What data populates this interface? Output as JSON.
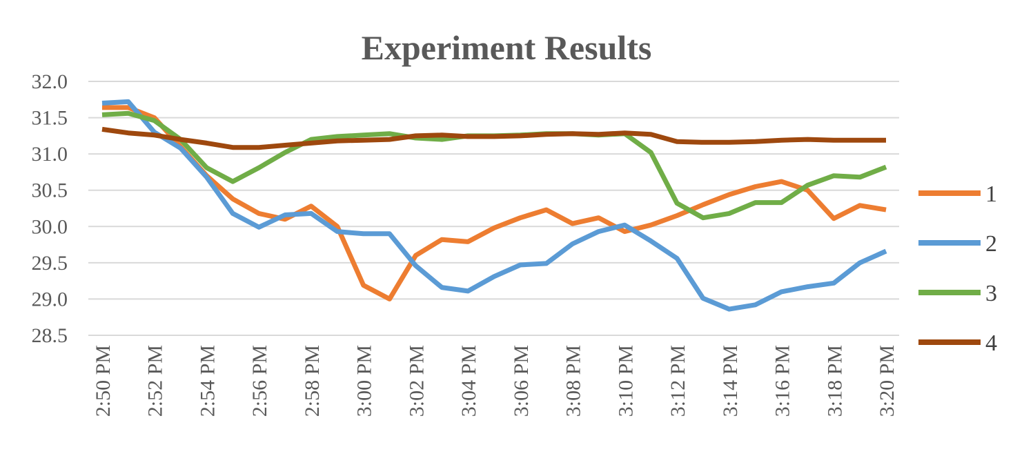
{
  "chart_data": {
    "type": "line",
    "title": "Experiment Results",
    "xlabel": "",
    "ylabel": "",
    "ylim": [
      28.5,
      32.0
    ],
    "yticks": [
      "32.0",
      "31.5",
      "31.0",
      "30.5",
      "30.0",
      "29.5",
      "29.0",
      "28.5"
    ],
    "ytick_values": [
      32.0,
      31.5,
      31.0,
      30.5,
      30.0,
      29.5,
      29.0,
      28.5
    ],
    "x": [
      "2:50 PM",
      "2:51 PM",
      "2:52 PM",
      "2:53 PM",
      "2:54 PM",
      "2:55 PM",
      "2:56 PM",
      "2:57 PM",
      "2:58 PM",
      "2:59 PM",
      "3:00 PM",
      "3:01 PM",
      "3:02 PM",
      "3:03 PM",
      "3:04 PM",
      "3:05 PM",
      "3:06 PM",
      "3:07 PM",
      "3:08 PM",
      "3:09 PM",
      "3:10 PM",
      "3:11 PM",
      "3:12 PM",
      "3:13 PM",
      "3:14 PM",
      "3:15 PM",
      "3:16 PM",
      "3:17 PM",
      "3:18 PM",
      "3:19 PM",
      "3:20 PM"
    ],
    "xtick_labels": [
      "2:50 PM",
      "2:52 PM",
      "2:54 PM",
      "2:56 PM",
      "2:58 PM",
      "3:00 PM",
      "3:02 PM",
      "3:04 PM",
      "3:06 PM",
      "3:08 PM",
      "3:10 PM",
      "3:12 PM",
      "3:14 PM",
      "3:16 PM",
      "3:18 PM",
      "3:20 PM"
    ],
    "grid": true,
    "legend_position": "right",
    "series": [
      {
        "name": "1",
        "color": "#ed7d31",
        "values": [
          31.64,
          31.64,
          31.5,
          31.1,
          30.7,
          30.38,
          30.18,
          30.1,
          30.28,
          30.0,
          29.19,
          29.0,
          29.6,
          29.82,
          29.79,
          29.98,
          30.12,
          30.23,
          30.04,
          30.12,
          29.93,
          30.02,
          30.15,
          30.3,
          30.44,
          30.55,
          30.62,
          30.5,
          30.11,
          30.29,
          30.23
        ]
      },
      {
        "name": "2",
        "color": "#5b9bd5",
        "values": [
          31.7,
          31.72,
          31.3,
          31.08,
          30.68,
          30.18,
          29.99,
          30.16,
          30.18,
          29.93,
          29.9,
          29.9,
          29.46,
          29.16,
          29.11,
          29.31,
          29.47,
          29.49,
          29.76,
          29.93,
          30.02,
          29.8,
          29.56,
          29.01,
          28.86,
          28.92,
          29.1,
          29.17,
          29.22,
          29.5,
          29.66
        ]
      },
      {
        "name": "3",
        "color": "#70ad47",
        "values": [
          31.54,
          31.56,
          31.46,
          31.2,
          30.81,
          30.62,
          30.81,
          31.02,
          31.2,
          31.24,
          31.26,
          31.28,
          31.22,
          31.2,
          31.25,
          31.25,
          31.26,
          31.28,
          31.28,
          31.26,
          31.28,
          31.02,
          30.32,
          30.12,
          30.18,
          30.33,
          30.33,
          30.57,
          30.7,
          30.68,
          30.82
        ]
      },
      {
        "name": "4",
        "color": "#9e480e",
        "values": [
          31.34,
          31.29,
          31.26,
          31.2,
          31.15,
          31.09,
          31.09,
          31.12,
          31.15,
          31.18,
          31.19,
          31.2,
          31.25,
          31.26,
          31.24,
          31.24,
          31.25,
          31.27,
          31.28,
          31.27,
          31.29,
          31.27,
          31.17,
          31.16,
          31.16,
          31.17,
          31.19,
          31.2,
          31.19,
          31.19,
          31.19
        ]
      }
    ]
  }
}
